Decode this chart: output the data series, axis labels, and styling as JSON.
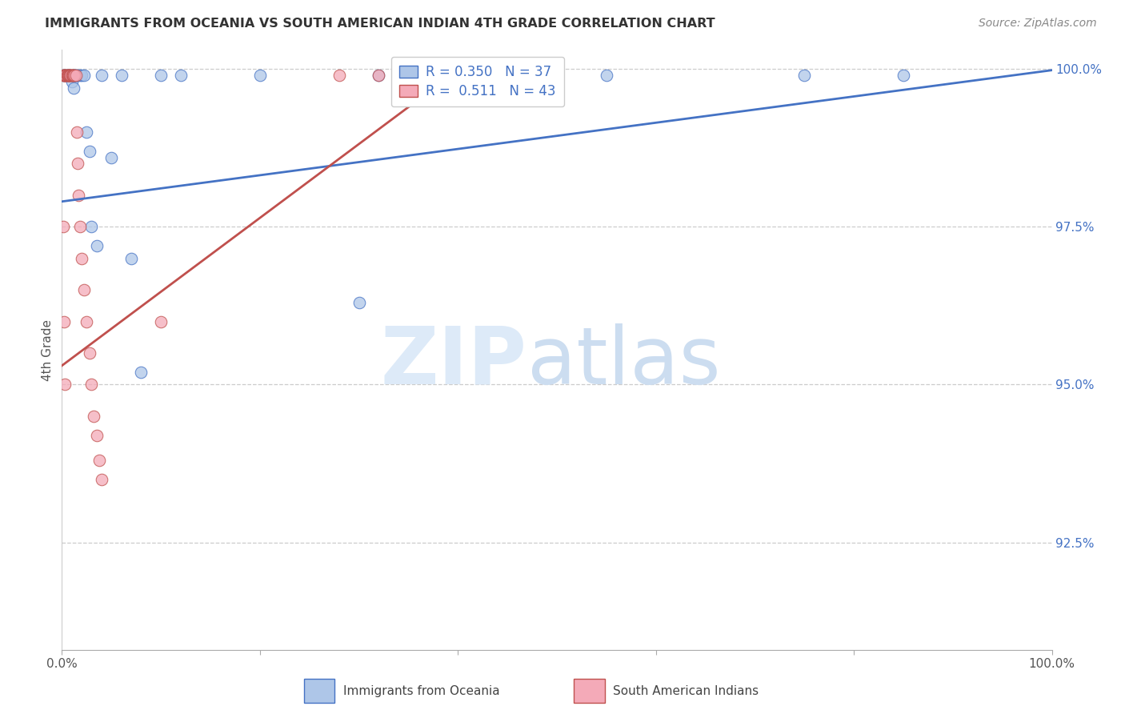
{
  "title": "IMMIGRANTS FROM OCEANIA VS SOUTH AMERICAN INDIAN 4TH GRADE CORRELATION CHART",
  "source": "Source: ZipAtlas.com",
  "ylabel": "4th Grade",
  "xlim": [
    0.0,
    1.0
  ],
  "ylim": [
    0.908,
    1.003
  ],
  "yticks": [
    0.925,
    0.95,
    0.975,
    1.0
  ],
  "ytick_labels": [
    "92.5%",
    "95.0%",
    "97.5%",
    "100.0%"
  ],
  "legend_label1": "Immigrants from Oceania",
  "legend_label2": "South American Indians",
  "R1": 0.35,
  "N1": 37,
  "R2": 0.511,
  "N2": 43,
  "color1": "#aec6e8",
  "color2": "#f4aab8",
  "line_color1": "#4472c4",
  "line_color2": "#c0504d",
  "background_color": "#ffffff",
  "blue_scatter_x": [
    0.001,
    0.002,
    0.003,
    0.004,
    0.005,
    0.006,
    0.007,
    0.008,
    0.01,
    0.01,
    0.012,
    0.012,
    0.013,
    0.014,
    0.015,
    0.016,
    0.018,
    0.02,
    0.022,
    0.025,
    0.028,
    0.03,
    0.035,
    0.04,
    0.05,
    0.06,
    0.07,
    0.08,
    0.1,
    0.12,
    0.3,
    0.55,
    0.75,
    0.85,
    0.32,
    0.2,
    0.45
  ],
  "blue_scatter_y": [
    0.999,
    0.999,
    0.999,
    0.999,
    0.999,
    0.999,
    0.999,
    0.999,
    0.999,
    0.998,
    0.999,
    0.997,
    0.999,
    0.999,
    0.999,
    0.999,
    0.999,
    0.999,
    0.999,
    0.99,
    0.987,
    0.975,
    0.972,
    0.999,
    0.986,
    0.999,
    0.97,
    0.952,
    0.999,
    0.999,
    0.963,
    0.999,
    0.999,
    0.999,
    0.999,
    0.999,
    0.999
  ],
  "pink_scatter_x": [
    0.001,
    0.002,
    0.002,
    0.003,
    0.003,
    0.004,
    0.004,
    0.005,
    0.005,
    0.006,
    0.006,
    0.007,
    0.007,
    0.008,
    0.008,
    0.009,
    0.009,
    0.01,
    0.01,
    0.011,
    0.011,
    0.012,
    0.013,
    0.014,
    0.015,
    0.016,
    0.017,
    0.018,
    0.02,
    0.022,
    0.025,
    0.028,
    0.03,
    0.032,
    0.035,
    0.038,
    0.04,
    0.1,
    0.28,
    0.32,
    0.001,
    0.002,
    0.003
  ],
  "pink_scatter_y": [
    0.999,
    0.999,
    0.999,
    0.999,
    0.999,
    0.999,
    0.999,
    0.999,
    0.999,
    0.999,
    0.999,
    0.999,
    0.999,
    0.999,
    0.999,
    0.999,
    0.999,
    0.999,
    0.999,
    0.999,
    0.999,
    0.999,
    0.999,
    0.999,
    0.99,
    0.985,
    0.98,
    0.975,
    0.97,
    0.965,
    0.96,
    0.955,
    0.95,
    0.945,
    0.942,
    0.938,
    0.935,
    0.96,
    0.999,
    0.999,
    0.975,
    0.96,
    0.95
  ],
  "blue_trendline_x": [
    0.0,
    1.0
  ],
  "blue_trendline_y": [
    0.979,
    0.9998
  ],
  "pink_trendline_x": [
    0.0,
    0.4
  ],
  "pink_trendline_y": [
    0.953,
    0.9998
  ]
}
